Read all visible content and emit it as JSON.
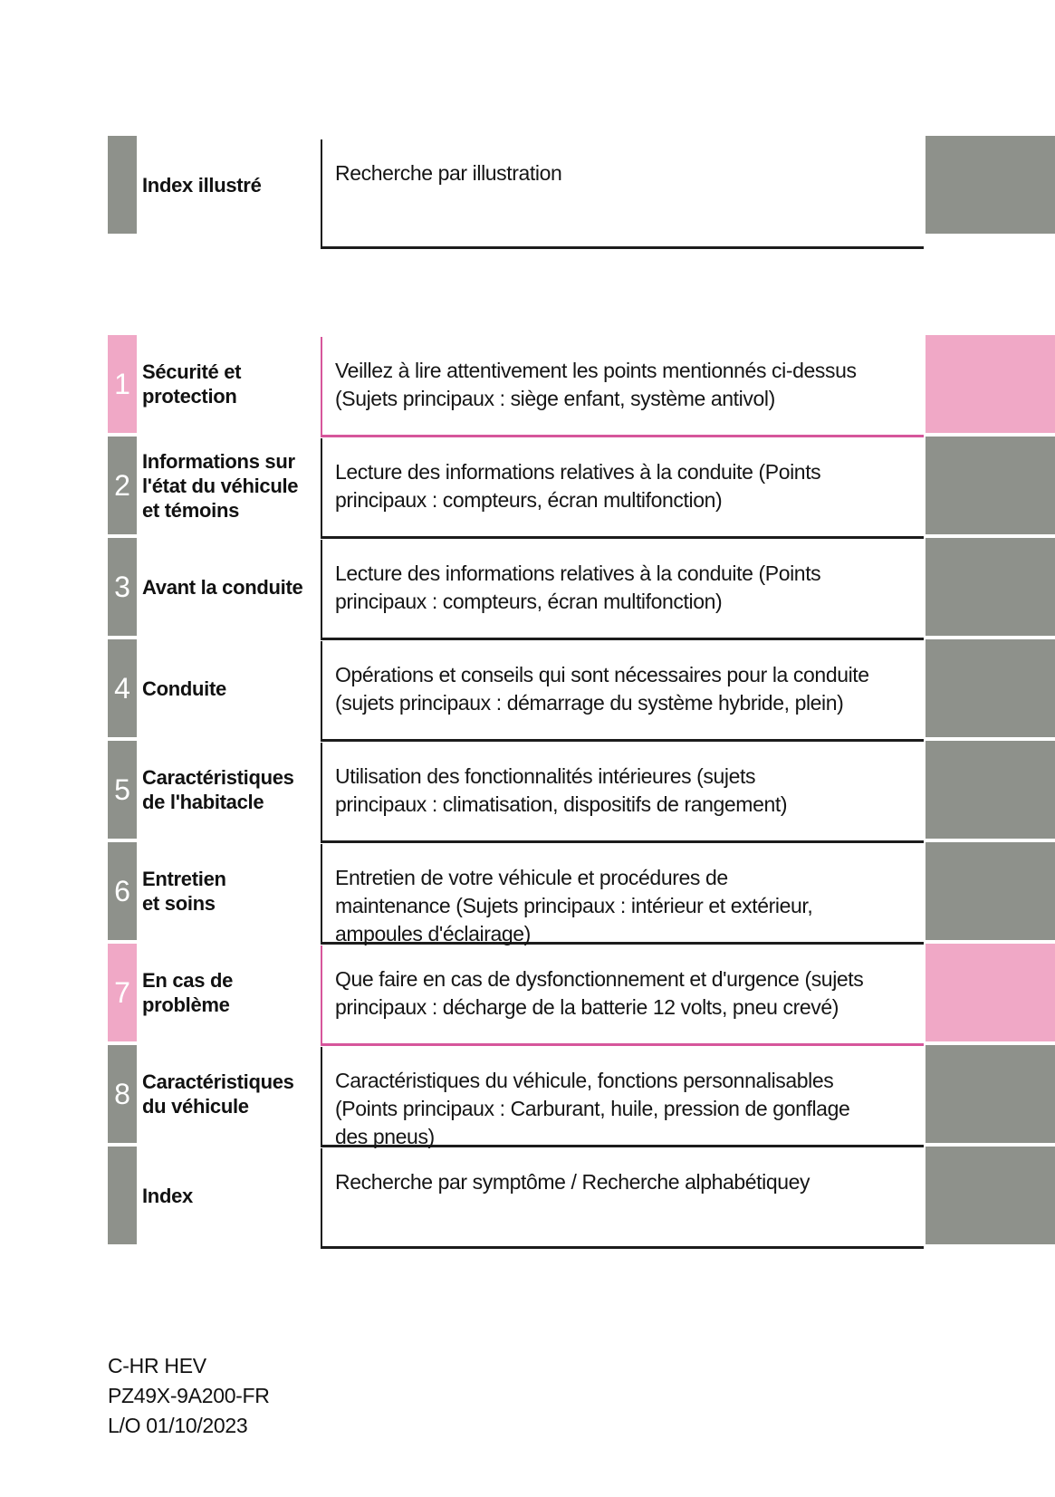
{
  "page": {
    "top_row": {
      "label": "Index illustré",
      "description": "Recherche par illustration"
    },
    "sections": [
      {
        "number": "1",
        "accent": "pink",
        "label": [
          "Sécurité et",
          "protection"
        ],
        "description": [
          "Veillez à lire attentivement les points mentionnés ci-dessus",
          "(Sujets principaux : siège enfant, système antivol)"
        ]
      },
      {
        "number": "2",
        "accent": "gray",
        "label": [
          "Informations sur",
          "l'état du véhicule",
          "et témoins"
        ],
        "description": [
          "Lecture des informations relatives à la conduite (Points",
          "principaux : compteurs, écran multifonction)"
        ]
      },
      {
        "number": "3",
        "accent": "gray",
        "label": [
          "Avant la conduite"
        ],
        "description": [
          "Lecture des informations relatives à la conduite (Points",
          "principaux : compteurs, écran multifonction)"
        ]
      },
      {
        "number": "4",
        "accent": "gray",
        "label": [
          "Conduite"
        ],
        "description": [
          "Opérations et conseils qui sont nécessaires pour la conduite",
          "(sujets principaux : démarrage du système hybride, plein)"
        ]
      },
      {
        "number": "5",
        "accent": "gray",
        "label": [
          "Caractéristiques",
          "de l'habitacle"
        ],
        "description": [
          "Utilisation des fonctionnalités intérieures (sujets",
          "principaux : climatisation, dispositifs de rangement)"
        ]
      },
      {
        "number": "6",
        "accent": "gray",
        "label": [
          "Entretien",
          "et soins"
        ],
        "description": [
          "Entretien de votre véhicule et procédures de",
          "maintenance (Sujets principaux : intérieur et extérieur,",
          "ampoules d'éclairage)"
        ]
      },
      {
        "number": "7",
        "accent": "pink",
        "label": [
          "En cas de",
          "problème"
        ],
        "description": [
          "Que faire en cas de dysfonctionnement et d'urgence (sujets",
          "principaux : décharge de la batterie 12 volts, pneu crevé)"
        ]
      },
      {
        "number": "8",
        "accent": "gray",
        "label": [
          "Caractéristiques",
          "du véhicule"
        ],
        "description": [
          "Caractéristiques du véhicule, fonctions personnalisables",
          "(Points principaux : Carburant, huile, pression de gonflage",
          "des pneus)"
        ]
      },
      {
        "number": "",
        "accent": "gray",
        "label": [
          "Index"
        ],
        "description": [
          "Recherche par symptôme / Recherche alphabétiquey"
        ]
      }
    ],
    "footer": {
      "lines": [
        "C-HR HEV",
        "PZ49X-9A200-FR",
        "L/O 01/10/2023"
      ]
    },
    "colors": {
      "gray": "#8e918b",
      "pink": "#f0a8c6",
      "pink_border": "#d6569b",
      "dark_border": "#1c1c1c"
    }
  }
}
